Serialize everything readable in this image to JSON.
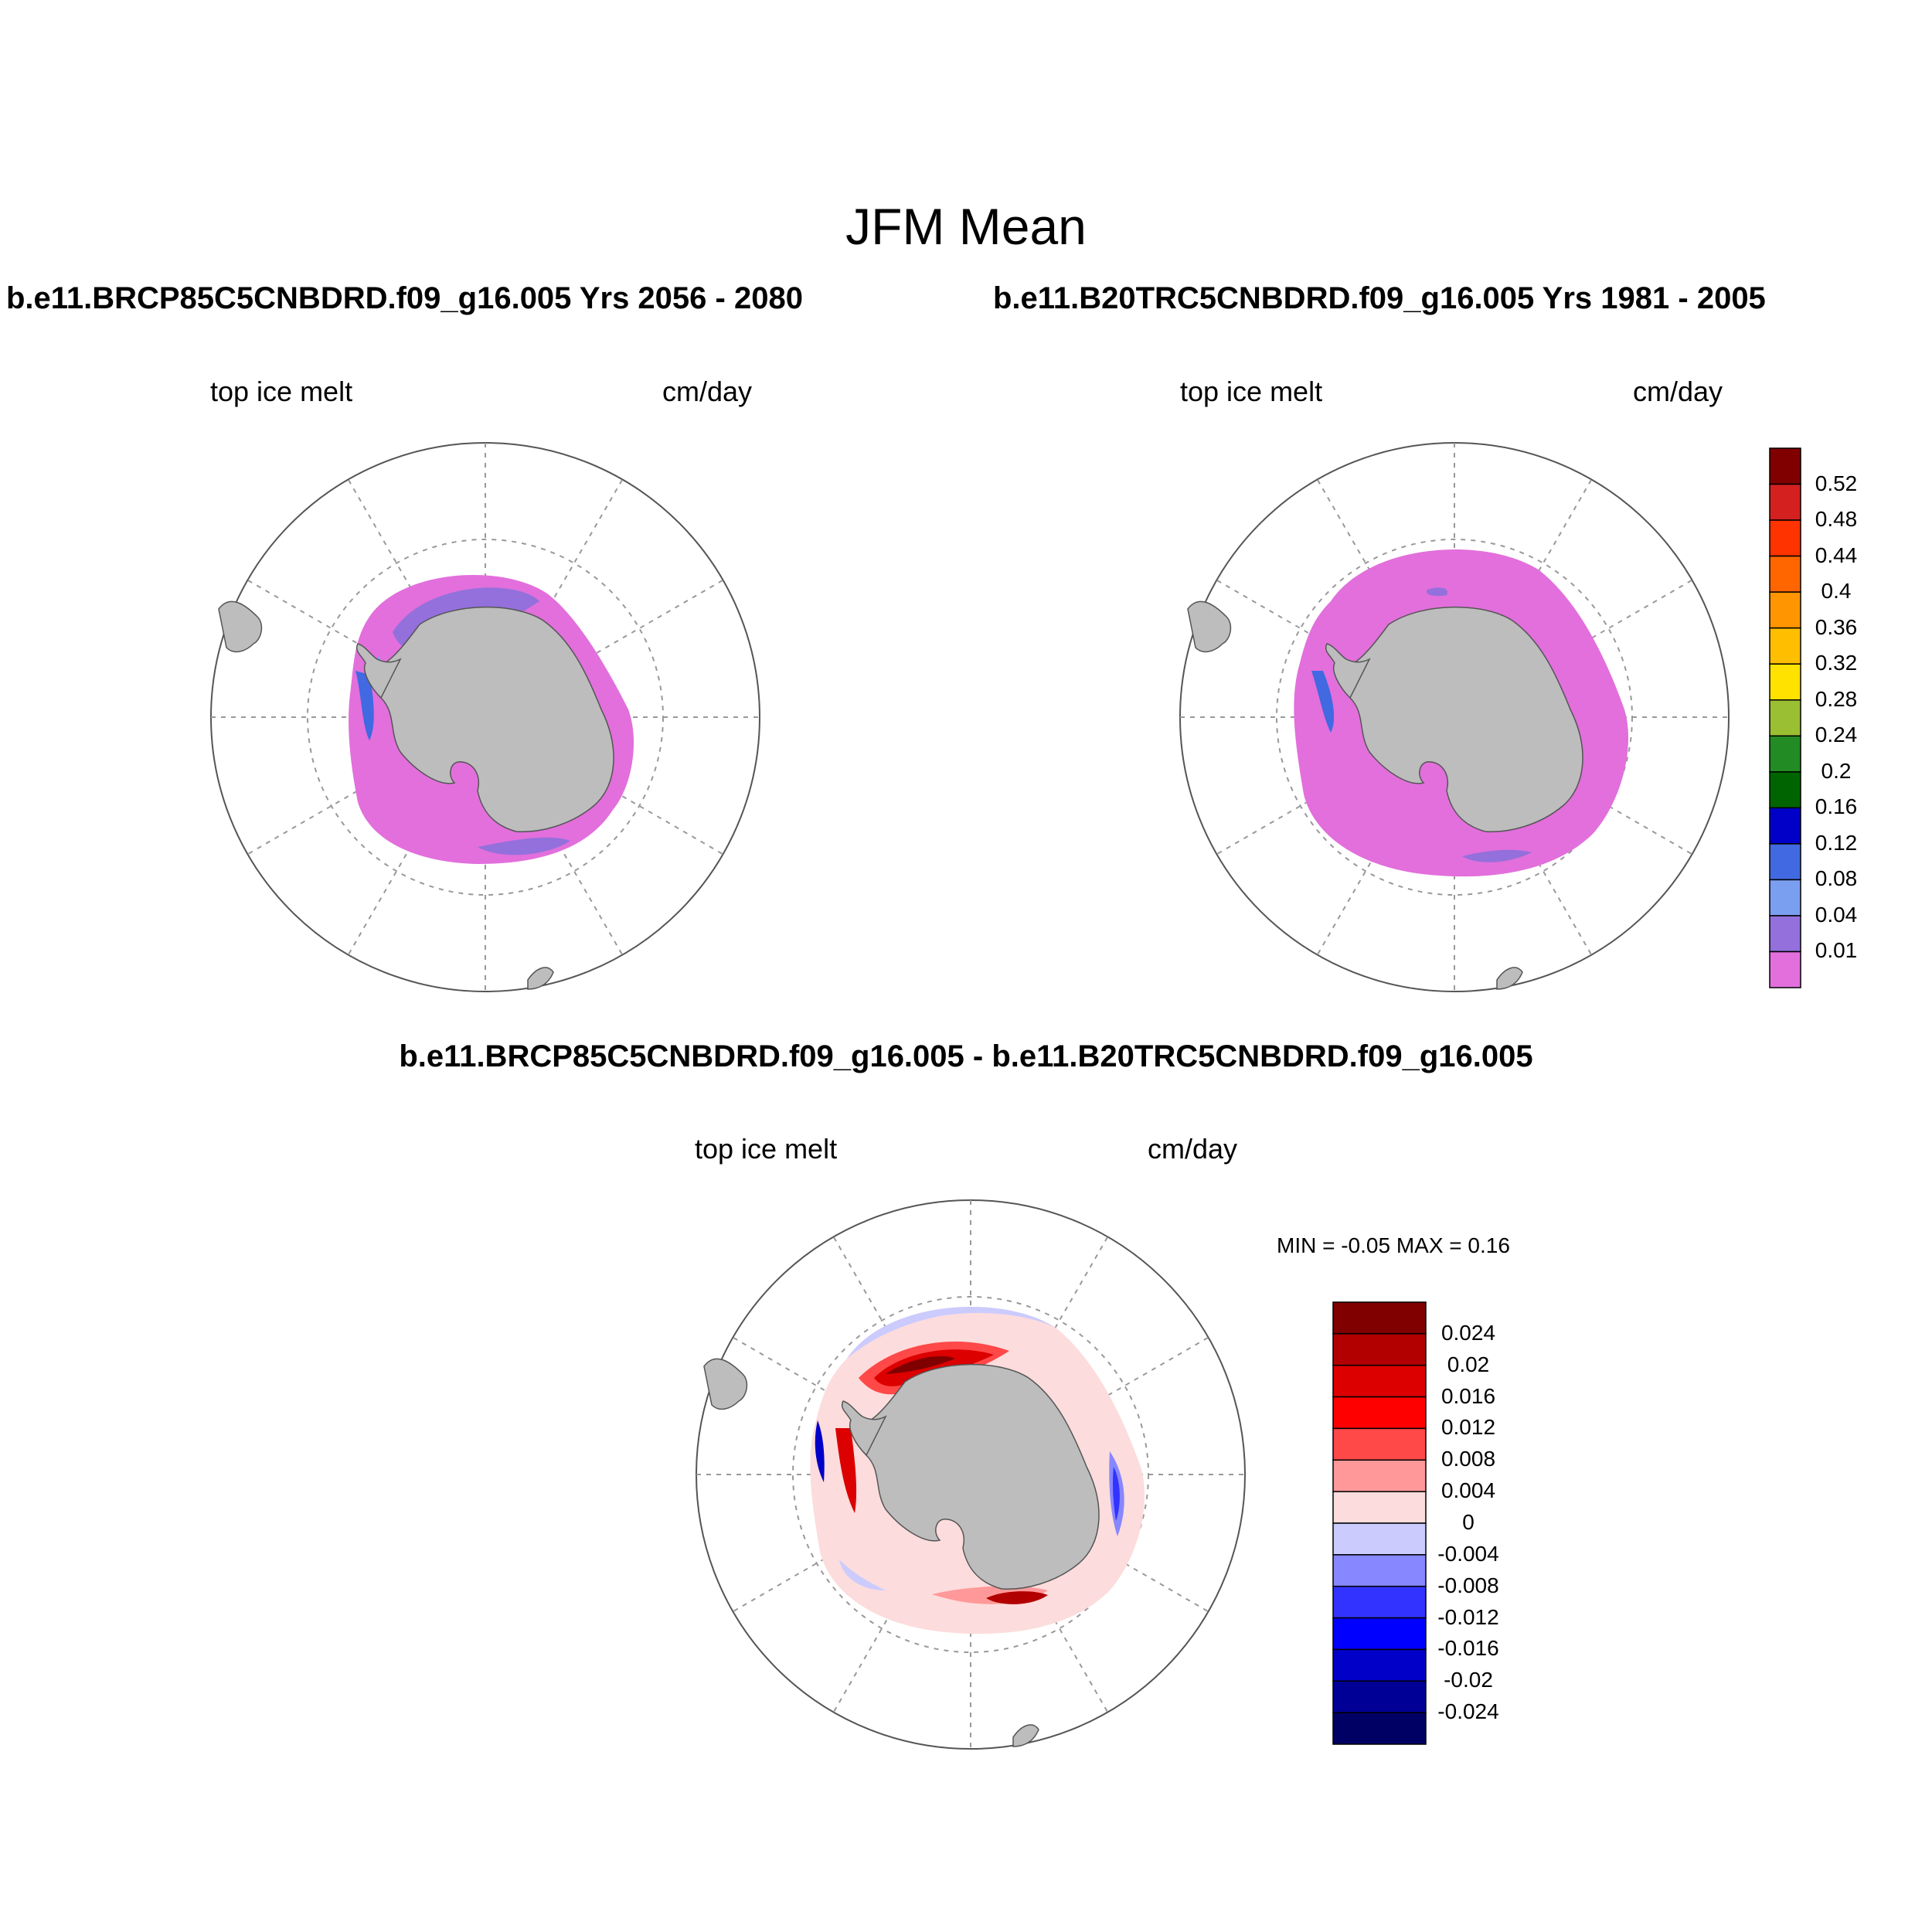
{
  "figure": {
    "title": "JFM Mean",
    "left_run_title": "b.e11.BRCP85C5CNBDRD.f09_g16.005  Yrs 2056 - 2080",
    "right_run_title": "b.e11.B20TRC5CNBDRD.f09_g16.005  Yrs 1981 - 2005",
    "diff_title": "b.e11.BRCP85C5CNBDRD.f09_g16.005 - b.e11.B20TRC5CNBDRD.f09_g16.005"
  },
  "panels": [
    {
      "id": "future",
      "variable": "top ice melt",
      "units": "cm/day"
    },
    {
      "id": "historical",
      "variable": "top ice melt",
      "units": "cm/day"
    },
    {
      "id": "difference",
      "variable": "top ice melt",
      "units": "cm/day"
    }
  ],
  "diff_stats": {
    "text": "MIN =  -0.05 MAX =   0.16"
  },
  "colorbars": {
    "abs": {
      "labels": [
        "0.52",
        "0.48",
        "0.44",
        "0.4",
        "0.36",
        "0.32",
        "0.28",
        "0.24",
        "0.2",
        "0.16",
        "0.12",
        "0.08",
        "0.04",
        "0.01"
      ],
      "colors": [
        "#800000",
        "#d52020",
        "#ff3300",
        "#ff6600",
        "#ff9500",
        "#ffbf00",
        "#ffe200",
        "#9abf33",
        "#238b23",
        "#006400",
        "#0000c8",
        "#4169e1",
        "#7b9ff0",
        "#9370db",
        "#e26fdc"
      ]
    },
    "diff": {
      "labels": [
        "0.024",
        "0.02",
        "0.016",
        "0.012",
        "0.008",
        "0.004",
        "0",
        "-0.004",
        "-0.008",
        "-0.012",
        "-0.016",
        "-0.02",
        "-0.024"
      ],
      "colors": [
        "#800000",
        "#b20000",
        "#dc0000",
        "#ff0000",
        "#ff4848",
        "#ff9999",
        "#fcdcdc",
        "#cbcbfe",
        "#8787ff",
        "#3333ff",
        "#0000ff",
        "#0000c8",
        "#000096",
        "#000064"
      ]
    }
  }
}
